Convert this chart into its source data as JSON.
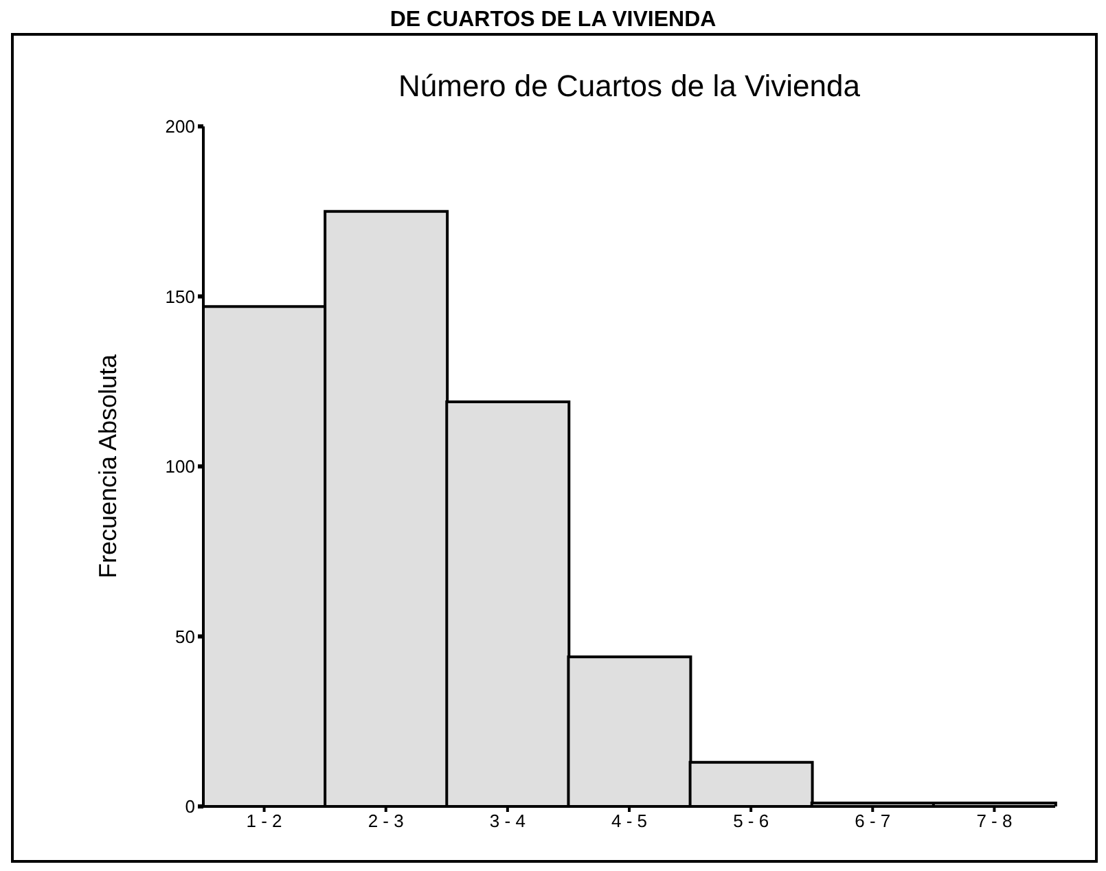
{
  "chart_data": {
    "type": "bar",
    "title": "Número de Cuartos de la Vivienda",
    "ylabel": "Frecuencia Absoluta",
    "annotations": [
      "DE CUARTOS DE LA VIVIENDA"
    ],
    "categories": [
      "1 - 2",
      "2 - 3",
      "3 - 4",
      "4 - 5",
      "5 - 6",
      "6 - 7",
      "7 - 8"
    ],
    "values": [
      147,
      175,
      119,
      44,
      13,
      1,
      1
    ],
    "color": "#dfdfdf",
    "ylim": [
      0,
      200
    ],
    "yticks": [
      0,
      50,
      100,
      150,
      200
    ]
  }
}
